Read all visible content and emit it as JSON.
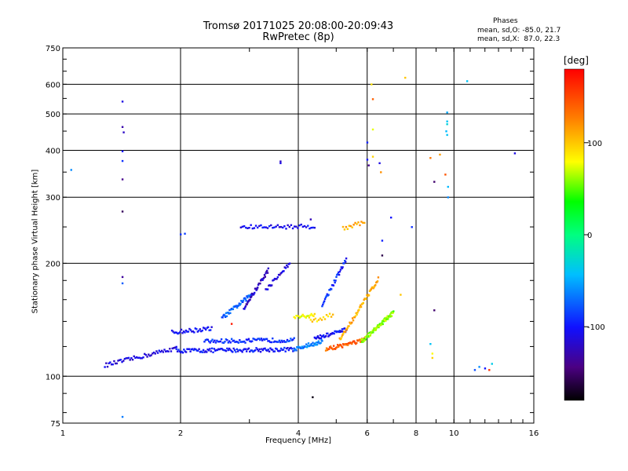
{
  "chart_data": {
    "type": "scatter",
    "title": "Tromsø 20171025 20:08:00-20:09:43",
    "subtitle": "RwPretec (8p)",
    "xlabel": "Frequency [MHz]",
    "ylabel": "Stationary phase Virtual Height [km]",
    "x_scale": "log",
    "y_scale": "log",
    "xlim": [
      1,
      16
    ],
    "ylim": [
      75,
      750
    ],
    "x_ticks": [
      1,
      2,
      4,
      6,
      8,
      10,
      16
    ],
    "y_ticks": [
      75,
      100,
      200,
      300,
      400,
      500,
      600,
      750
    ],
    "grid": true,
    "legend": {
      "heading": "Phases",
      "lines": [
        "mean, sd,O: -85.0, 21.7",
        "mean, sd,X:  87.0, 22.3"
      ]
    },
    "colorbar": {
      "unit": "[deg]",
      "range": [
        -180,
        180
      ],
      "ticks": [
        100,
        0,
        -100
      ],
      "colormap": "rainbow"
    },
    "traces": [
      {
        "f0": 1.28,
        "f1": 1.95,
        "h0": 107,
        "h1": 119,
        "phase": -110,
        "n": 55
      },
      {
        "f0": 1.95,
        "f1": 3.9,
        "h0": 117,
        "h1": 118,
        "phase": -100,
        "n": 110
      },
      {
        "f0": 2.3,
        "f1": 3.9,
        "h0": 124,
        "h1": 125,
        "phase": -90,
        "n": 80
      },
      {
        "f0": 1.9,
        "f1": 2.4,
        "h0": 131,
        "h1": 134,
        "phase": -105,
        "n": 35
      },
      {
        "f0": 2.55,
        "f1": 3.05,
        "h0": 143,
        "h1": 166,
        "phase": -75,
        "n": 45
      },
      {
        "f0": 2.9,
        "f1": 3.35,
        "h0": 152,
        "h1": 192,
        "phase": -120,
        "n": 40
      },
      {
        "f0": 3.3,
        "f1": 3.8,
        "h0": 170,
        "h1": 200,
        "phase": -115,
        "n": 25
      },
      {
        "f0": 2.85,
        "f1": 4.4,
        "h0": 250,
        "h1": 251,
        "phase": -105,
        "n": 45
      },
      {
        "f0": 3.9,
        "f1": 4.6,
        "h0": 118,
        "h1": 124,
        "phase": -65,
        "n": 40
      },
      {
        "f0": 4.4,
        "f1": 5.3,
        "h0": 126,
        "h1": 133,
        "phase": -100,
        "n": 40
      },
      {
        "f0": 4.6,
        "f1": 5.3,
        "h0": 155,
        "h1": 205,
        "phase": -95,
        "n": 35
      },
      {
        "f0": 4.7,
        "f1": 5.9,
        "h0": 118,
        "h1": 125,
        "phase": 140,
        "n": 50
      },
      {
        "f0": 5.1,
        "f1": 6.4,
        "h0": 125,
        "h1": 182,
        "phase": 110,
        "n": 55
      },
      {
        "f0": 5.8,
        "f1": 7.0,
        "h0": 124,
        "h1": 148,
        "phase": 60,
        "n": 70
      },
      {
        "f0": 3.9,
        "f1": 4.4,
        "h0": 143,
        "h1": 146,
        "phase": 80,
        "n": 20
      },
      {
        "f0": 5.2,
        "f1": 5.9,
        "h0": 248,
        "h1": 258,
        "phase": 110,
        "n": 15
      },
      {
        "f0": 4.3,
        "f1": 4.9,
        "h0": 140,
        "h1": 146,
        "phase": 95,
        "n": 15
      }
    ],
    "points": [
      {
        "x": 1.05,
        "y": 355,
        "phase": -60
      },
      {
        "x": 1.42,
        "y": 540,
        "phase": -110
      },
      {
        "x": 1.42,
        "y": 462,
        "phase": -130
      },
      {
        "x": 1.43,
        "y": 447,
        "phase": -120
      },
      {
        "x": 1.42,
        "y": 398,
        "phase": -100
      },
      {
        "x": 1.42,
        "y": 375,
        "phase": -90
      },
      {
        "x": 1.42,
        "y": 335,
        "phase": -140
      },
      {
        "x": 1.42,
        "y": 275,
        "phase": -155
      },
      {
        "x": 1.42,
        "y": 184,
        "phase": -135
      },
      {
        "x": 1.42,
        "y": 177,
        "phase": -75
      },
      {
        "x": 1.42,
        "y": 78,
        "phase": -65
      },
      {
        "x": 2.0,
        "y": 239,
        "phase": -90
      },
      {
        "x": 2.05,
        "y": 240,
        "phase": -85
      },
      {
        "x": 3.6,
        "y": 374,
        "phase": -120
      },
      {
        "x": 3.6,
        "y": 370,
        "phase": -110
      },
      {
        "x": 4.3,
        "y": 262,
        "phase": -125
      },
      {
        "x": 4.35,
        "y": 88,
        "phase": -175
      },
      {
        "x": 2.7,
        "y": 138,
        "phase": 170
      },
      {
        "x": 6.0,
        "y": 420,
        "phase": -95
      },
      {
        "x": 6.0,
        "y": 378,
        "phase": -100
      },
      {
        "x": 6.05,
        "y": 365,
        "phase": -140
      },
      {
        "x": 6.15,
        "y": 600,
        "phase": 90
      },
      {
        "x": 6.2,
        "y": 548,
        "phase": 140
      },
      {
        "x": 6.2,
        "y": 455,
        "phase": 75
      },
      {
        "x": 6.2,
        "y": 385,
        "phase": 95
      },
      {
        "x": 6.45,
        "y": 370,
        "phase": -110
      },
      {
        "x": 6.5,
        "y": 350,
        "phase": 120
      },
      {
        "x": 6.55,
        "y": 230,
        "phase": -95
      },
      {
        "x": 6.55,
        "y": 210,
        "phase": -160
      },
      {
        "x": 6.9,
        "y": 265,
        "phase": -100
      },
      {
        "x": 7.3,
        "y": 165,
        "phase": 100
      },
      {
        "x": 7.5,
        "y": 625,
        "phase": 100
      },
      {
        "x": 7.8,
        "y": 250,
        "phase": -90
      },
      {
        "x": 8.7,
        "y": 382,
        "phase": 130
      },
      {
        "x": 8.9,
        "y": 330,
        "phase": -150
      },
      {
        "x": 8.9,
        "y": 150,
        "phase": -150
      },
      {
        "x": 9.2,
        "y": 390,
        "phase": 115
      },
      {
        "x": 9.5,
        "y": 345,
        "phase": 145
      },
      {
        "x": 9.6,
        "y": 505,
        "phase": -50
      },
      {
        "x": 9.6,
        "y": 478,
        "phase": -40
      },
      {
        "x": 9.6,
        "y": 470,
        "phase": -30
      },
      {
        "x": 9.55,
        "y": 450,
        "phase": -45
      },
      {
        "x": 9.6,
        "y": 440,
        "phase": -40
      },
      {
        "x": 9.65,
        "y": 320,
        "phase": -45
      },
      {
        "x": 9.65,
        "y": 300,
        "phase": -60
      },
      {
        "x": 8.7,
        "y": 122,
        "phase": -40
      },
      {
        "x": 8.8,
        "y": 115,
        "phase": 80
      },
      {
        "x": 8.8,
        "y": 112,
        "phase": 95
      },
      {
        "x": 10.8,
        "y": 612,
        "phase": -40
      },
      {
        "x": 11.3,
        "y": 104,
        "phase": -80
      },
      {
        "x": 11.6,
        "y": 106,
        "phase": -60
      },
      {
        "x": 12.0,
        "y": 105,
        "phase": -100
      },
      {
        "x": 12.3,
        "y": 104,
        "phase": 160
      },
      {
        "x": 12.5,
        "y": 108,
        "phase": -35
      },
      {
        "x": 14.3,
        "y": 393,
        "phase": -110
      }
    ]
  }
}
